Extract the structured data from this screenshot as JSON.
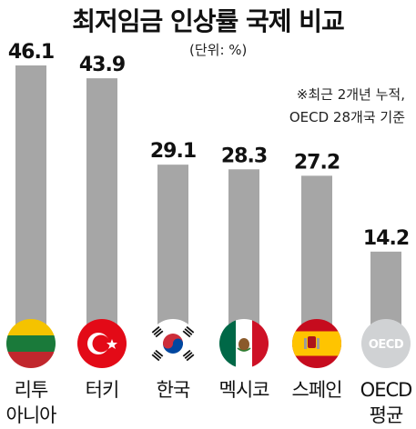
{
  "chart_data": {
    "type": "bar",
    "title": "최저임금 인상률 국제 비교",
    "unit": "(단위: %)",
    "note": [
      "※최근 2개년 누적,",
      "OECD 28개국 기준"
    ],
    "categories": [
      [
        "리투",
        "아니아"
      ],
      [
        "터키"
      ],
      [
        "한국"
      ],
      [
        "멕시코"
      ],
      [
        "스페인"
      ],
      [
        "OECD",
        "평균"
      ]
    ],
    "values": [
      46.1,
      43.9,
      29.1,
      28.3,
      27.2,
      14.2
    ],
    "value_labels": [
      "46.1",
      "43.9",
      "29.1",
      "28.3",
      "27.2",
      "14.2"
    ],
    "flag_icons": [
      "lithuania-flag-icon",
      "turkey-flag-icon",
      "korea-flag-icon",
      "mexico-flag-icon",
      "spain-flag-icon",
      "oecd-logo-icon"
    ],
    "colors": {
      "bar": "#a6a6a6",
      "text": "#111111"
    }
  }
}
